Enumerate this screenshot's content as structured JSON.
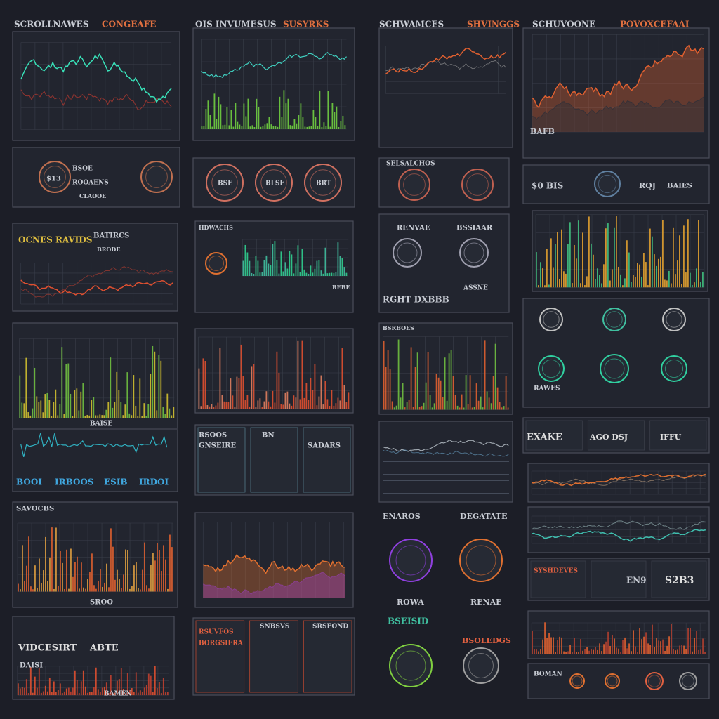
{
  "columns": [
    {
      "title": "SCROLLNAWES",
      "tag": "CONGEAFE"
    },
    {
      "title": "OIS INVUMESUS",
      "tag": "SUSYRKS"
    },
    {
      "title": "SCHWAMCES",
      "tag": "SHVINGGS"
    },
    {
      "title": "SCHUVOONE",
      "tag": "POVOXCEFAAI"
    }
  ],
  "panels": [
    {
      "texts": [
        "$13",
        "BSOE",
        "ROOAENS",
        "CLAOOE"
      ]
    },
    {
      "texts": [
        "BATIRCS",
        "OCNES RAVIDS",
        "BRODE"
      ]
    },
    {
      "texts": [
        "BAISE"
      ]
    },
    {
      "texts": [
        "BOOI",
        "IRBOOS",
        "ESIB",
        "IRDOI"
      ]
    },
    {
      "texts": [
        "SAVOCBS",
        "SROO"
      ]
    },
    {
      "texts": [
        "VIDCESIRT",
        "ABTE",
        "DAISI",
        "BAMEN"
      ]
    },
    {
      "texts": [
        "BSE",
        "BLSE",
        "BRT"
      ]
    },
    {
      "texts": [
        "HDWACHS",
        "REBE"
      ]
    },
    {
      "texts": [
        "RSOOS",
        "GNSEIRE",
        "BN",
        "SADARS"
      ]
    },
    {
      "texts": [
        "RSUVFOS",
        "BORGSIERA",
        "SNBSVS",
        "SRSEOND"
      ]
    },
    {
      "texts": [
        "SELSALCHOS"
      ]
    },
    {
      "texts": [
        "RENVAE",
        "BSSIAAR",
        "RGHT DXBBB",
        "ASSNE"
      ]
    },
    {
      "texts": [
        "BSRBOES"
      ]
    },
    {
      "texts": [
        "ENAROS",
        "DEGATATE",
        "ROWA",
        "BSEISID",
        "RENAE",
        "BSOLEDGS"
      ]
    },
    {
      "texts": [
        "BAFB"
      ]
    },
    {
      "texts": [
        "$0 BIS",
        "RQJ",
        "BAIES"
      ]
    },
    {
      "texts": [
        "RAWES"
      ]
    },
    {
      "texts": [
        "EXAKE",
        "AGO DSJ",
        "IFFU"
      ]
    },
    {
      "texts": [
        "SYSHDEVES",
        "EN9",
        "S2B3"
      ]
    },
    {
      "texts": [
        "BOMAN"
      ]
    }
  ]
}
